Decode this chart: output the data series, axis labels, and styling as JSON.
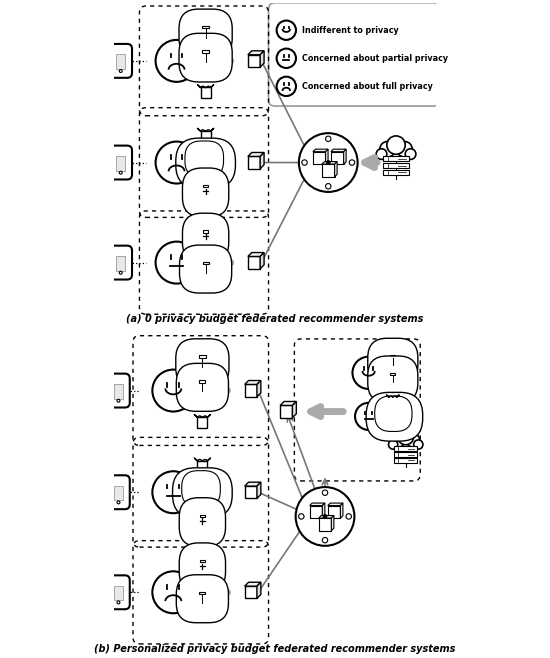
{
  "title_a": "(a) 0 privacy budget federated recommender systems",
  "title_b": "(b) Personalized privacy budget federated recommender systems",
  "legend_labels": [
    "Indifferent to privacy",
    "Concerned about partial privacy",
    "Concerned about full privacy"
  ],
  "bg_color": "#ffffff",
  "box_color": "#000000",
  "arrow_color": "#aaaaaa",
  "line_color": "#000000"
}
